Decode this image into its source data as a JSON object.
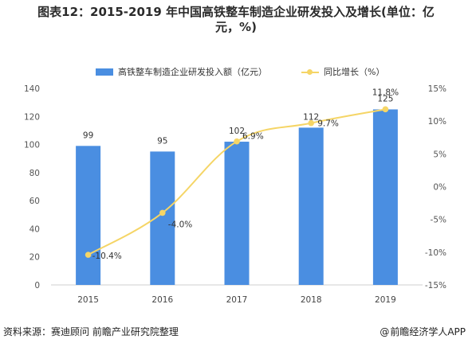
{
  "title_line1": "图表12：2015-2019 年中国高铁整车制造企业研发投入及增长(单位：亿",
  "title_line2": "元，%)",
  "footer": {
    "source": "资料来源：赛迪顾问 前瞻产业研究院整理",
    "brand_symbol": "@",
    "brand": "前瞻经济学人APP"
  },
  "colors": {
    "bar": "#4a8ee1",
    "line": "#f5d566",
    "axis_text": "#555555"
  },
  "chart_data": {
    "type": "bar",
    "categories": [
      "2015",
      "2016",
      "2017",
      "2018",
      "2019"
    ],
    "series": [
      {
        "name": "高铁整车制造企业研发投入额（亿元）",
        "type": "bar",
        "axis": "left",
        "values": [
          99,
          95,
          102,
          112,
          125
        ],
        "labels": [
          "99",
          "95",
          "102",
          "112",
          "125"
        ]
      },
      {
        "name": "同比增长（%）",
        "type": "line",
        "axis": "right",
        "values": [
          -10.4,
          -4.0,
          6.9,
          9.7,
          11.8
        ],
        "labels": [
          "-10.4%",
          "-4.0%",
          "6.9%",
          "9.7%",
          "11.8%"
        ]
      }
    ],
    "left_axis": {
      "min": 0,
      "max": 140,
      "ticks": [
        "0",
        "20",
        "40",
        "60",
        "80",
        "100",
        "120",
        "140"
      ]
    },
    "right_axis": {
      "min": -15,
      "max": 15,
      "ticks": [
        "-15%",
        "-10%",
        "-5%",
        "0%",
        "5%",
        "10%",
        "15%"
      ]
    },
    "legend_position": "top-center",
    "grid": false
  }
}
